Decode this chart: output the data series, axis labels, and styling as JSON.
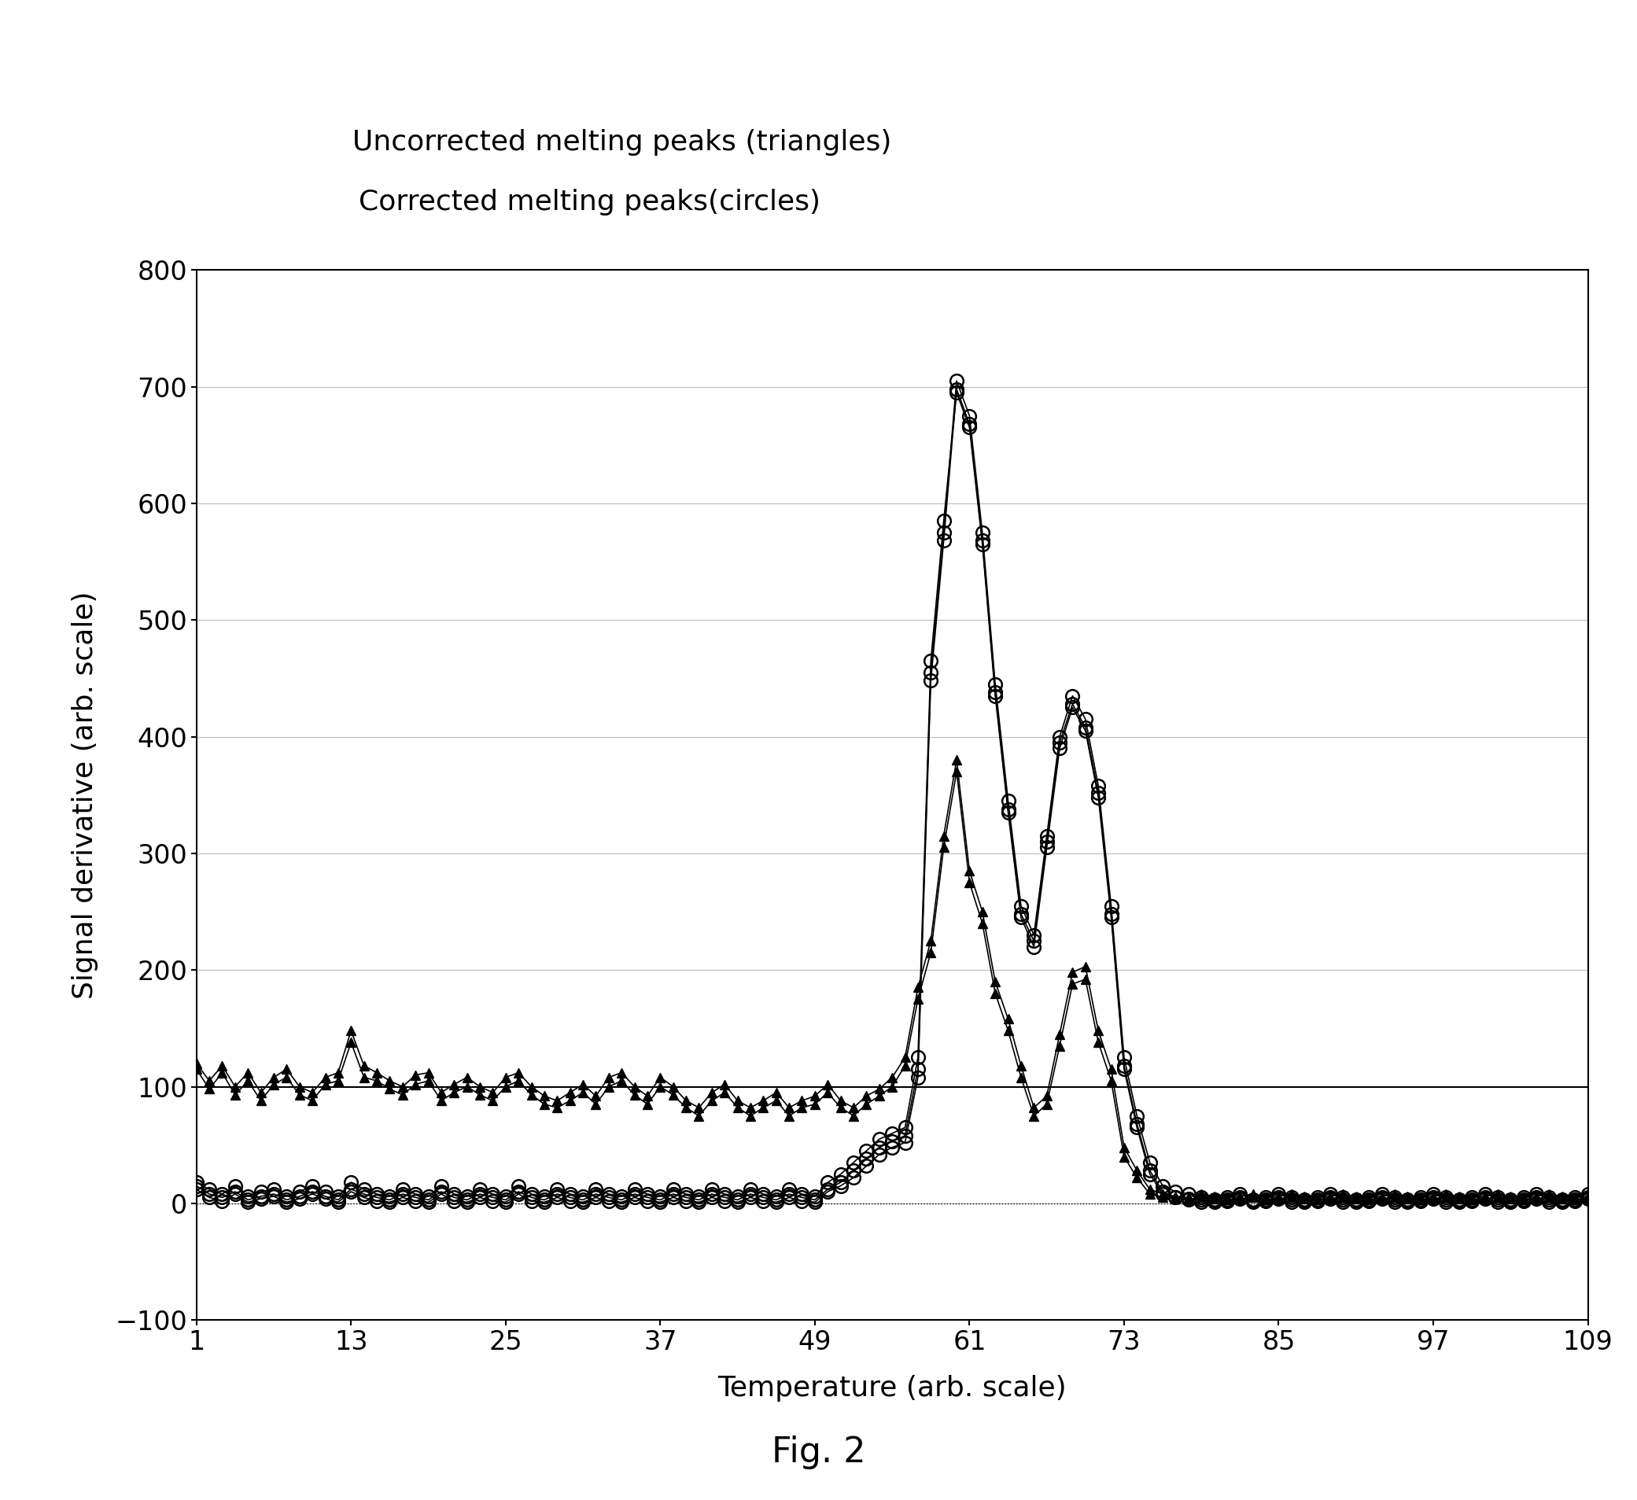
{
  "title_line1": "Uncorrected melting peaks (triangles)",
  "title_line2": "Corrected melting peaks(circles)",
  "xlabel": "Temperature (arb. scale)",
  "ylabel": "Signal derivative (arb. scale)",
  "fig_label": "Fig. 2",
  "xlim": [
    1,
    109
  ],
  "ylim": [
    -100,
    800
  ],
  "xticks": [
    1,
    13,
    25,
    37,
    49,
    61,
    73,
    85,
    97,
    109
  ],
  "yticks": [
    -100,
    0,
    100,
    200,
    300,
    400,
    500,
    600,
    700,
    800
  ],
  "background_color": "#ffffff",
  "triangle_color": "#000000",
  "circle_color": "#000000",
  "hline_y": 100,
  "triangle_series": [
    [
      1,
      2,
      3,
      4,
      5,
      6,
      7,
      8,
      9,
      10,
      11,
      12,
      13,
      14,
      15,
      16,
      17,
      18,
      19,
      20,
      21,
      22,
      23,
      24,
      25,
      26,
      27,
      28,
      29,
      30,
      31,
      32,
      33,
      34,
      35,
      36,
      37,
      38,
      39,
      40,
      41,
      42,
      43,
      44,
      45,
      46,
      47,
      48,
      49,
      50,
      51,
      52,
      53,
      54,
      55,
      56,
      57,
      58,
      59,
      60,
      61,
      62,
      63,
      64,
      65,
      66,
      67,
      68,
      69,
      70,
      71,
      72,
      73,
      74,
      75,
      76,
      77,
      78,
      79,
      80,
      81,
      82,
      83,
      84,
      85,
      86,
      87,
      88,
      89,
      90,
      91,
      92,
      93,
      94,
      95,
      96,
      97,
      98,
      99,
      100,
      101,
      102,
      103,
      104,
      105,
      106,
      107,
      108,
      109
    ],
    [
      120,
      105,
      118,
      100,
      112,
      95,
      108,
      115,
      100,
      95,
      108,
      112,
      148,
      118,
      112,
      105,
      100,
      110,
      112,
      95,
      102,
      108,
      100,
      95,
      108,
      112,
      100,
      92,
      88,
      95,
      102,
      92,
      108,
      112,
      100,
      92,
      108,
      100,
      88,
      82,
      95,
      102,
      88,
      82,
      88,
      95,
      82,
      88,
      92,
      102,
      88,
      82,
      92,
      98,
      108,
      125,
      185,
      225,
      315,
      380,
      285,
      250,
      190,
      158,
      118,
      82,
      92,
      145,
      198,
      203,
      148,
      115,
      48,
      28,
      12,
      8,
      6,
      5,
      8,
      6,
      5,
      6,
      8,
      5,
      6,
      8,
      6,
      5,
      6,
      8,
      6,
      5,
      6,
      8,
      6,
      5,
      6,
      8,
      6,
      5,
      6,
      8,
      6,
      5,
      6,
      8,
      6,
      5,
      6
    ]
  ],
  "triangle_series2": [
    [
      1,
      2,
      3,
      4,
      5,
      6,
      7,
      8,
      9,
      10,
      11,
      12,
      13,
      14,
      15,
      16,
      17,
      18,
      19,
      20,
      21,
      22,
      23,
      24,
      25,
      26,
      27,
      28,
      29,
      30,
      31,
      32,
      33,
      34,
      35,
      36,
      37,
      38,
      39,
      40,
      41,
      42,
      43,
      44,
      45,
      46,
      47,
      48,
      49,
      50,
      51,
      52,
      53,
      54,
      55,
      56,
      57,
      58,
      59,
      60,
      61,
      62,
      63,
      64,
      65,
      66,
      67,
      68,
      69,
      70,
      71,
      72,
      73,
      74,
      75,
      76,
      77,
      78,
      79,
      80,
      81,
      82,
      83,
      84,
      85,
      86,
      87,
      88,
      89,
      90,
      91,
      92,
      93,
      94,
      95,
      96,
      97,
      98,
      99,
      100,
      101,
      102,
      103,
      104,
      105,
      106,
      107,
      108,
      109
    ],
    [
      115,
      98,
      112,
      93,
      105,
      88,
      102,
      108,
      93,
      88,
      102,
      105,
      138,
      108,
      105,
      98,
      93,
      102,
      105,
      88,
      95,
      100,
      93,
      88,
      100,
      105,
      93,
      85,
      82,
      88,
      95,
      85,
      100,
      105,
      93,
      85,
      100,
      93,
      82,
      75,
      88,
      95,
      82,
      75,
      82,
      88,
      75,
      82,
      85,
      95,
      82,
      75,
      85,
      92,
      100,
      118,
      175,
      215,
      305,
      370,
      275,
      240,
      180,
      148,
      108,
      75,
      85,
      135,
      188,
      192,
      138,
      105,
      40,
      22,
      8,
      5,
      4,
      3,
      5,
      4,
      3,
      4,
      5,
      3,
      4,
      5,
      4,
      3,
      4,
      5,
      4,
      3,
      4,
      5,
      4,
      3,
      4,
      5,
      4,
      3,
      4,
      5,
      4,
      3,
      4,
      5,
      4,
      3,
      4
    ]
  ],
  "circle_series": [
    [
      1,
      2,
      3,
      4,
      5,
      6,
      7,
      8,
      9,
      10,
      11,
      12,
      13,
      14,
      15,
      16,
      17,
      18,
      19,
      20,
      21,
      22,
      23,
      24,
      25,
      26,
      27,
      28,
      29,
      30,
      31,
      32,
      33,
      34,
      35,
      36,
      37,
      38,
      39,
      40,
      41,
      42,
      43,
      44,
      45,
      46,
      47,
      48,
      49,
      50,
      51,
      52,
      53,
      54,
      55,
      56,
      57,
      58,
      59,
      60,
      61,
      62,
      63,
      64,
      65,
      66,
      67,
      68,
      69,
      70,
      71,
      72,
      73,
      74,
      75,
      76,
      77,
      78,
      79,
      80,
      81,
      82,
      83,
      84,
      85,
      86,
      87,
      88,
      89,
      90,
      91,
      92,
      93,
      94,
      95,
      96,
      97,
      98,
      99,
      100,
      101,
      102,
      103,
      104,
      105,
      106,
      107,
      108,
      109
    ],
    [
      15,
      8,
      5,
      10,
      3,
      6,
      8,
      3,
      6,
      10,
      6,
      3,
      12,
      8,
      5,
      3,
      8,
      5,
      3,
      10,
      5,
      3,
      8,
      5,
      3,
      10,
      5,
      3,
      8,
      5,
      3,
      8,
      5,
      3,
      8,
      5,
      3,
      8,
      5,
      3,
      8,
      5,
      3,
      8,
      5,
      3,
      8,
      5,
      3,
      12,
      18,
      28,
      38,
      48,
      53,
      58,
      115,
      455,
      575,
      705,
      675,
      575,
      445,
      345,
      255,
      230,
      315,
      400,
      435,
      415,
      358,
      255,
      125,
      75,
      35,
      15,
      10,
      8,
      5,
      3,
      5,
      8,
      3,
      5,
      8,
      5,
      3,
      5,
      8,
      5,
      3,
      5,
      8,
      5,
      3,
      5,
      8,
      5,
      3,
      5,
      8,
      5,
      3,
      5,
      8,
      5,
      3,
      5,
      8
    ]
  ],
  "circle_series2": [
    [
      1,
      2,
      3,
      4,
      5,
      6,
      7,
      8,
      9,
      10,
      11,
      12,
      13,
      14,
      15,
      16,
      17,
      18,
      19,
      20,
      21,
      22,
      23,
      24,
      25,
      26,
      27,
      28,
      29,
      30,
      31,
      32,
      33,
      34,
      35,
      36,
      37,
      38,
      39,
      40,
      41,
      42,
      43,
      44,
      45,
      46,
      47,
      48,
      49,
      50,
      51,
      52,
      53,
      54,
      55,
      56,
      57,
      58,
      59,
      60,
      61,
      62,
      63,
      64,
      65,
      66,
      67,
      68,
      69,
      70,
      71,
      72,
      73,
      74,
      75,
      76,
      77,
      78,
      79,
      80,
      81,
      82,
      83,
      84,
      85,
      86,
      87,
      88,
      89,
      90,
      91,
      92,
      93,
      94,
      95,
      96,
      97,
      98,
      99,
      100,
      101,
      102,
      103,
      104,
      105,
      106,
      107,
      108,
      109
    ],
    [
      18,
      12,
      8,
      15,
      6,
      10,
      12,
      6,
      10,
      15,
      10,
      6,
      18,
      12,
      8,
      6,
      12,
      8,
      6,
      15,
      8,
      6,
      12,
      8,
      6,
      15,
      8,
      6,
      12,
      8,
      6,
      12,
      8,
      6,
      12,
      8,
      6,
      12,
      8,
      6,
      12,
      8,
      6,
      12,
      8,
      6,
      12,
      8,
      6,
      18,
      25,
      35,
      45,
      55,
      60,
      65,
      125,
      465,
      585,
      695,
      665,
      565,
      435,
      335,
      245,
      220,
      305,
      390,
      425,
      405,
      348,
      245,
      115,
      65,
      25,
      8,
      5,
      4,
      3,
      2,
      3,
      5,
      2,
      3,
      5,
      3,
      2,
      3,
      5,
      3,
      2,
      3,
      5,
      3,
      2,
      3,
      5,
      3,
      2,
      3,
      5,
      3,
      2,
      3,
      5,
      3,
      2,
      3,
      5
    ]
  ],
  "circle_series3": [
    [
      1,
      2,
      3,
      4,
      5,
      6,
      7,
      8,
      9,
      10,
      11,
      12,
      13,
      14,
      15,
      16,
      17,
      18,
      19,
      20,
      21,
      22,
      23,
      24,
      25,
      26,
      27,
      28,
      29,
      30,
      31,
      32,
      33,
      34,
      35,
      36,
      37,
      38,
      39,
      40,
      41,
      42,
      43,
      44,
      45,
      46,
      47,
      48,
      49,
      50,
      51,
      52,
      53,
      54,
      55,
      56,
      57,
      58,
      59,
      60,
      61,
      62,
      63,
      64,
      65,
      66,
      67,
      68,
      69,
      70,
      71,
      72,
      73,
      74,
      75,
      76,
      77,
      78,
      79,
      80,
      81,
      82,
      83,
      84,
      85,
      86,
      87,
      88,
      89,
      90,
      91,
      92,
      93,
      94,
      95,
      96,
      97,
      98,
      99,
      100,
      101,
      102,
      103,
      104,
      105,
      106,
      107,
      108,
      109
    ],
    [
      12,
      5,
      2,
      8,
      1,
      4,
      6,
      1,
      4,
      8,
      4,
      1,
      10,
      5,
      2,
      1,
      5,
      2,
      1,
      8,
      2,
      1,
      5,
      2,
      1,
      8,
      2,
      1,
      5,
      2,
      1,
      5,
      2,
      1,
      5,
      2,
      1,
      5,
      2,
      1,
      5,
      2,
      1,
      5,
      2,
      1,
      5,
      2,
      1,
      10,
      15,
      22,
      32,
      42,
      48,
      52,
      108,
      448,
      568,
      698,
      668,
      568,
      438,
      338,
      248,
      225,
      310,
      395,
      428,
      408,
      352,
      248,
      118,
      68,
      28,
      10,
      5,
      3,
      1,
      1,
      2,
      4,
      1,
      2,
      4,
      1,
      1,
      2,
      4,
      1,
      1,
      2,
      4,
      1,
      1,
      2,
      4,
      1,
      1,
      2,
      4,
      1,
      1,
      2,
      4,
      1,
      1,
      2,
      4
    ]
  ]
}
